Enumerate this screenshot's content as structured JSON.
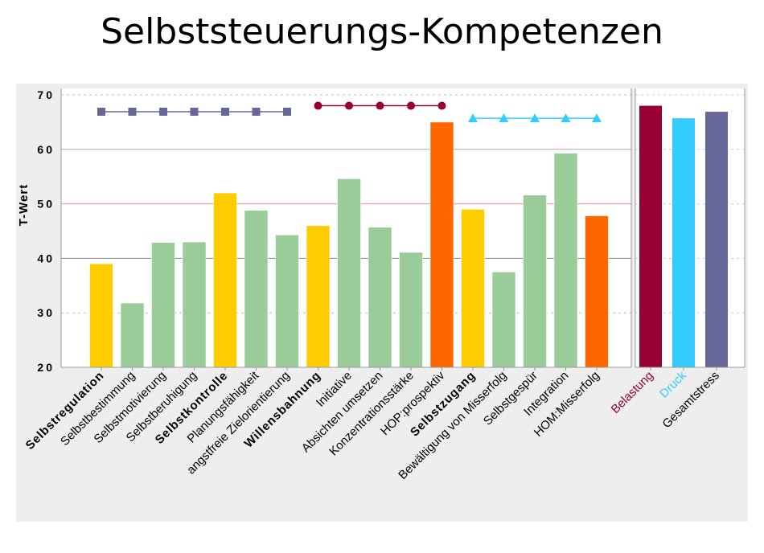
{
  "title": "Selbststeuerungs-Kompetenzen",
  "chart_data": [
    {
      "type": "bar",
      "ylabel": "T-Wert",
      "ylim": [
        20,
        70
      ],
      "yticks": [
        20,
        30,
        40,
        50,
        60,
        70
      ],
      "reference_line": 50,
      "categories": [
        "Selbstregulation",
        "Selbstbestimmung",
        "Selbstmotivierung",
        "Selbstberuhigung",
        "Selbstkontrolle",
        "Planungsfähigkeit",
        "angstfreie Zielorientierung",
        "Willensbahnung",
        "Initiative",
        "Absichten umsetzen",
        "Konzentrationsstärke",
        "HOP:prospektiv",
        "Selbstzugang",
        "Bewältigung von Misserfolg",
        "Selbstgespür",
        "Integration",
        "HOM:Misserfolg"
      ],
      "bold_categories": [
        "Selbstregulation",
        "Selbstkontrolle",
        "Willensbahnung",
        "Selbstzugang"
      ],
      "values": [
        39.0,
        31.8,
        42.9,
        43.0,
        52.0,
        48.8,
        44.3,
        46.0,
        54.6,
        45.7,
        41.1,
        65.0,
        49.0,
        37.5,
        51.6,
        59.3,
        47.8
      ],
      "bar_colors": [
        "#ffcc00",
        "#99cc99",
        "#99cc99",
        "#99cc99",
        "#ffcc00",
        "#99cc99",
        "#99cc99",
        "#ffcc00",
        "#99cc99",
        "#99cc99",
        "#99cc99",
        "#ff6600",
        "#ffcc00",
        "#99cc99",
        "#99cc99",
        "#99cc99",
        "#ff6600"
      ],
      "reference_series": [
        {
          "marker": "square",
          "color": "#666699",
          "value": 66.9,
          "span": [
            "Selbstregulation",
            "angstfreie Zielorientierung"
          ]
        },
        {
          "marker": "circle",
          "color": "#990033",
          "value": 68.0,
          "span": [
            "Willensbahnung",
            "HOP:prospektiv"
          ]
        },
        {
          "marker": "triangle",
          "color": "#33ccff",
          "value": 65.7,
          "span": [
            "Selbstzugang",
            "HOM:Misserfolg"
          ]
        }
      ]
    },
    {
      "type": "bar",
      "ylim": [
        20,
        70
      ],
      "categories": [
        "Belastung",
        "Druck",
        "Gesamtstress"
      ],
      "values": [
        68.0,
        65.7,
        66.9
      ],
      "bar_colors": [
        "#990033",
        "#33ccff",
        "#666699"
      ],
      "label_colors": [
        "#990033",
        "#33ccff",
        "#000000"
      ]
    }
  ]
}
